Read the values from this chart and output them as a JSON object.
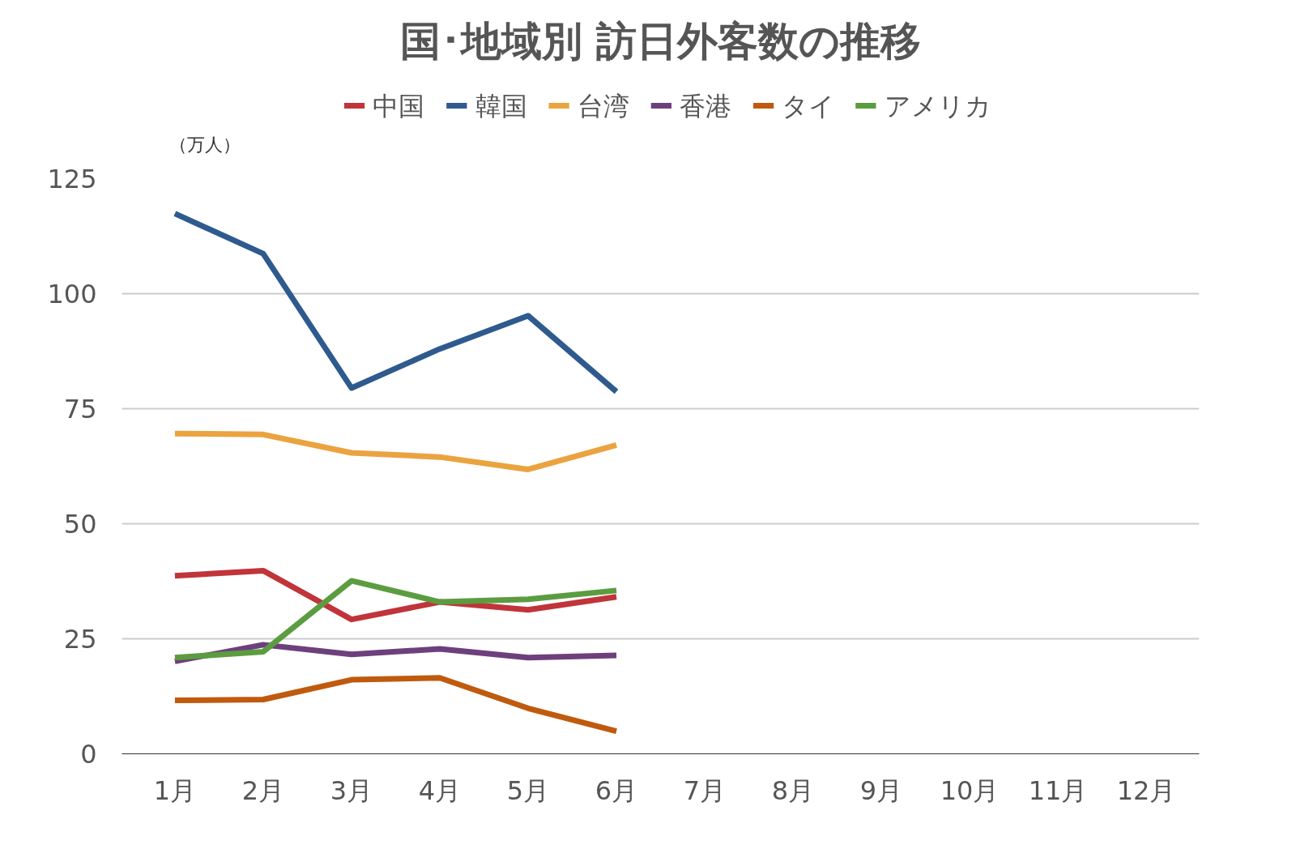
{
  "chart_data": {
    "type": "line",
    "title": "国･地域別 訪日外客数の推移",
    "ylabel": "（万人）",
    "categories": [
      "1月",
      "2月",
      "3月",
      "4月",
      "5月",
      "6月",
      "7月",
      "8月",
      "9月",
      "10月",
      "11月",
      "12月"
    ],
    "series": [
      {
        "name": "中国",
        "color": "#c0343a",
        "values": [
          38.7,
          39.8,
          29.2,
          33.0,
          31.3,
          34.1,
          null,
          null,
          null,
          null,
          null,
          null
        ]
      },
      {
        "name": "韓国",
        "color": "#2e5a8e",
        "values": [
          117.4,
          108.7,
          79.5,
          88.0,
          95.2,
          78.7,
          null,
          null,
          null,
          null,
          null,
          null
        ]
      },
      {
        "name": "台湾",
        "color": "#eba33f",
        "values": [
          69.6,
          69.4,
          65.4,
          64.5,
          61.8,
          67.1,
          null,
          null,
          null,
          null,
          null,
          null
        ]
      },
      {
        "name": "香港",
        "color": "#6e3f7d",
        "values": [
          20.1,
          23.7,
          21.6,
          22.8,
          20.9,
          21.4,
          null,
          null,
          null,
          null,
          null,
          null
        ]
      },
      {
        "name": "タイ",
        "color": "#c05a0e",
        "values": [
          11.6,
          11.8,
          16.1,
          16.5,
          9.9,
          4.9,
          null,
          null,
          null,
          null,
          null,
          null
        ]
      },
      {
        "name": "アメリカ",
        "color": "#5c9c40",
        "values": [
          20.9,
          22.2,
          37.6,
          33.0,
          33.6,
          35.5,
          null,
          null,
          null,
          null,
          null,
          null
        ]
      }
    ],
    "ylim": [
      0,
      125
    ],
    "yticks": [
      0,
      25,
      50,
      75,
      100,
      125
    ],
    "grid": "y",
    "legend": "top",
    "line_style": "solid"
  }
}
